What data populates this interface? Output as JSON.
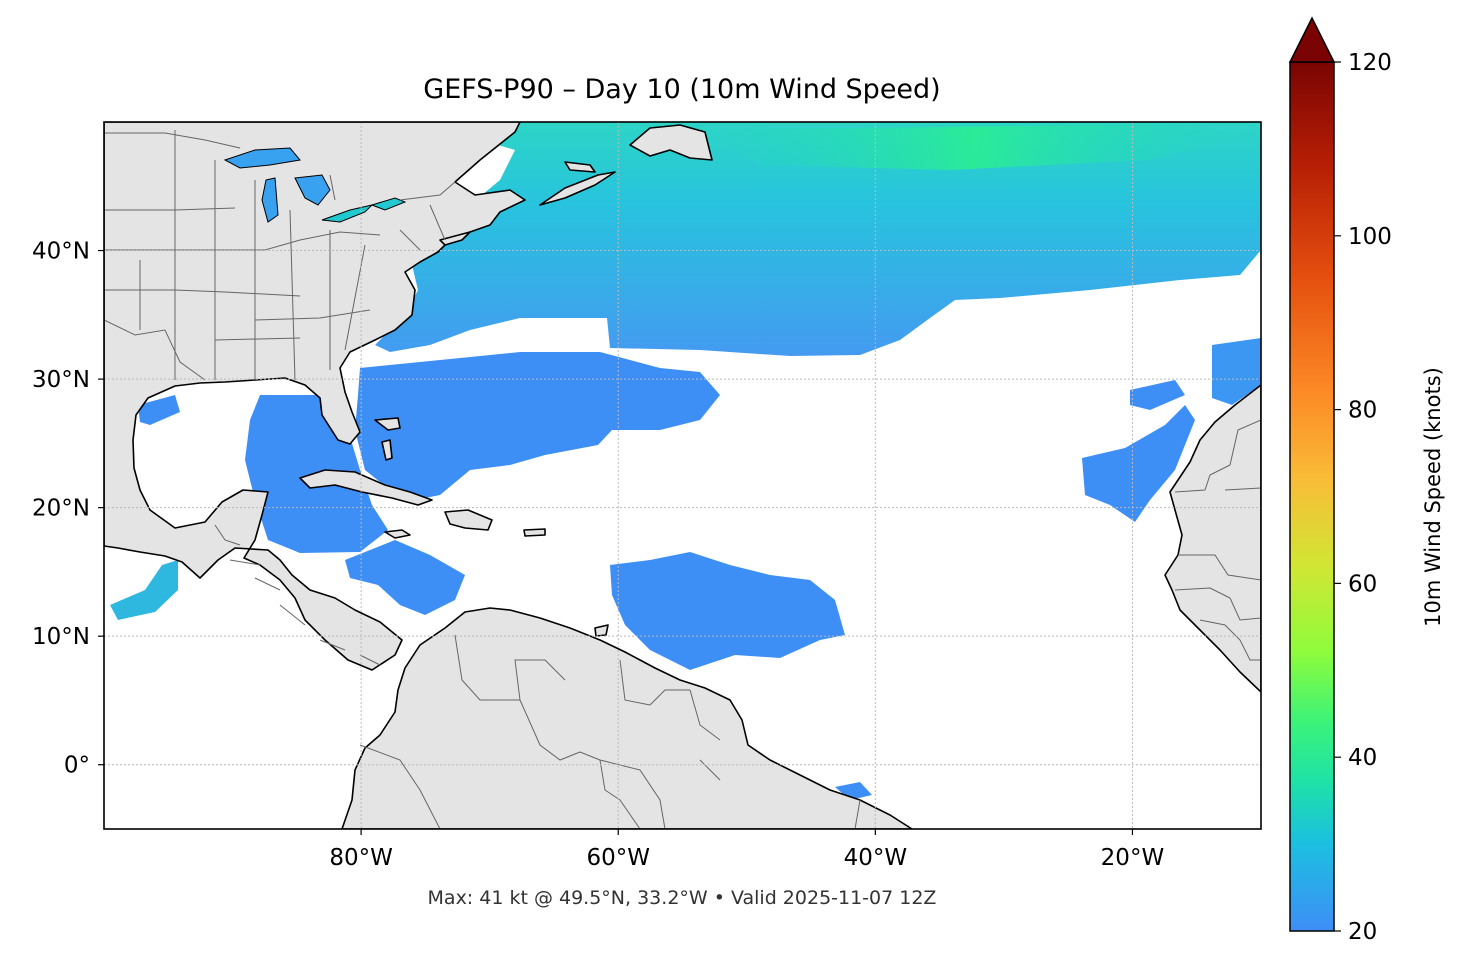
{
  "title": "GEFS-P90 – Day 10 (10m Wind Speed)",
  "footer": "Max: 41 kt @ 49.5°N, 33.2°W • Valid 2025-11-07 12Z",
  "map": {
    "projection": "PlateCarree",
    "extent_lon": [
      -100,
      -10
    ],
    "extent_lat": [
      -5,
      50
    ],
    "lon_ticks": [
      {
        "value": -80,
        "label": "80°W"
      },
      {
        "value": -60,
        "label": "60°W"
      },
      {
        "value": -40,
        "label": "40°W"
      },
      {
        "value": -20,
        "label": "20°W"
      }
    ],
    "lat_ticks": [
      {
        "value": 40,
        "label": "40°N"
      },
      {
        "value": 30,
        "label": "30°N"
      },
      {
        "value": 20,
        "label": "20°N"
      },
      {
        "value": 10,
        "label": "10°N"
      },
      {
        "value": 0,
        "label": "0°"
      }
    ],
    "gridlines": "dotted",
    "colors": {
      "land": "#e4e4e4",
      "coastline": "#000000",
      "borders": "#666666",
      "ocean": "#ffffff",
      "gridline": "#bbbbbb"
    }
  },
  "colorbar": {
    "label": "10m Wind Speed (knots)",
    "min": 20,
    "max": 120,
    "extend": "max",
    "colormap": "turbo",
    "ticks": [
      {
        "value": 20,
        "label": "20"
      },
      {
        "value": 40,
        "label": "40"
      },
      {
        "value": 60,
        "label": "60"
      },
      {
        "value": 80,
        "label": "80"
      },
      {
        "value": 100,
        "label": "100"
      },
      {
        "value": 120,
        "label": "120"
      }
    ],
    "stops": [
      {
        "value": 20,
        "color": "#3e8ef7"
      },
      {
        "value": 30,
        "color": "#1cbfe0"
      },
      {
        "value": 37,
        "color": "#1ee1a8"
      },
      {
        "value": 44,
        "color": "#3bf37a"
      },
      {
        "value": 52,
        "color": "#8efc3c"
      },
      {
        "value": 62,
        "color": "#d1e634"
      },
      {
        "value": 72,
        "color": "#f9bc37"
      },
      {
        "value": 82,
        "color": "#fc8a26"
      },
      {
        "value": 95,
        "color": "#e5500f"
      },
      {
        "value": 108,
        "color": "#b71f05"
      },
      {
        "value": 120,
        "color": "#7a0403"
      }
    ]
  },
  "max_wind": {
    "value_kt": 41,
    "lat": 49.5,
    "lon": -33.2
  }
}
